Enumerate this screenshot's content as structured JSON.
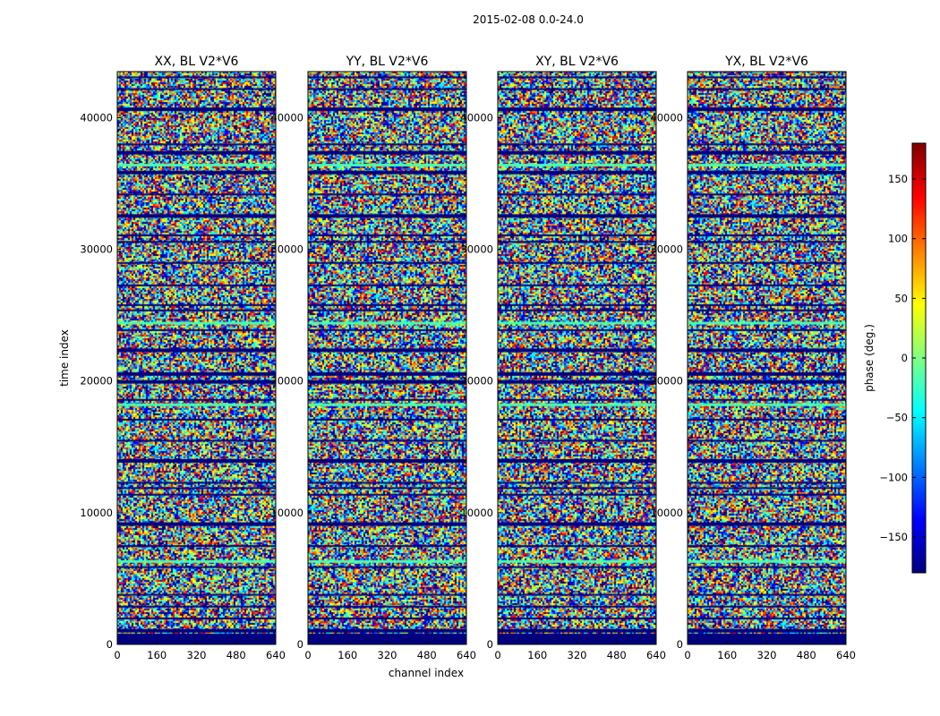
{
  "chart_data": {
    "type": "heatmap",
    "suptitle": "2015-02-08 0.0-24.0",
    "panels": [
      {
        "title": "XX, BL V2*V6"
      },
      {
        "title": "YY, BL V2*V6"
      },
      {
        "title": "XY, BL V2*V6"
      },
      {
        "title": "YX, BL V2*V6"
      }
    ],
    "xlabel": "channel index",
    "ylabel": "time index",
    "xlim": [
      0,
      640
    ],
    "ylim": [
      0,
      43500
    ],
    "xticks": [
      0,
      160,
      320,
      480,
      640
    ],
    "yticks": [
      0,
      10000,
      20000,
      30000,
      40000
    ],
    "colorbar": {
      "label": "phase (deg.)",
      "range": [
        -180,
        180
      ],
      "ticks": [
        -150,
        -100,
        -50,
        0,
        50,
        100,
        150
      ],
      "colormap": "jet"
    },
    "notes_visible": "phase values appear as random noise with horizontal bands of flagged (dark blue) rows",
    "flag_rows": [
      0,
      900,
      1900,
      2800,
      3700,
      5800,
      7400,
      9000,
      11300,
      11800,
      12200,
      13800,
      15400,
      17000,
      18500,
      19800,
      20400,
      22200,
      23800,
      25300,
      25700,
      27200,
      28900,
      30500,
      31000,
      32400,
      34100,
      35700,
      37200,
      37900,
      40500,
      42100,
      43000
    ]
  },
  "colors": {
    "flag": "#00007f",
    "cyan_band": "#48ffae",
    "colormap_stops": [
      "#00007f",
      "#0000ff",
      "#007fff",
      "#00ffff",
      "#7fff7f",
      "#ffff00",
      "#ff7f00",
      "#ff0000",
      "#7f0000"
    ]
  }
}
